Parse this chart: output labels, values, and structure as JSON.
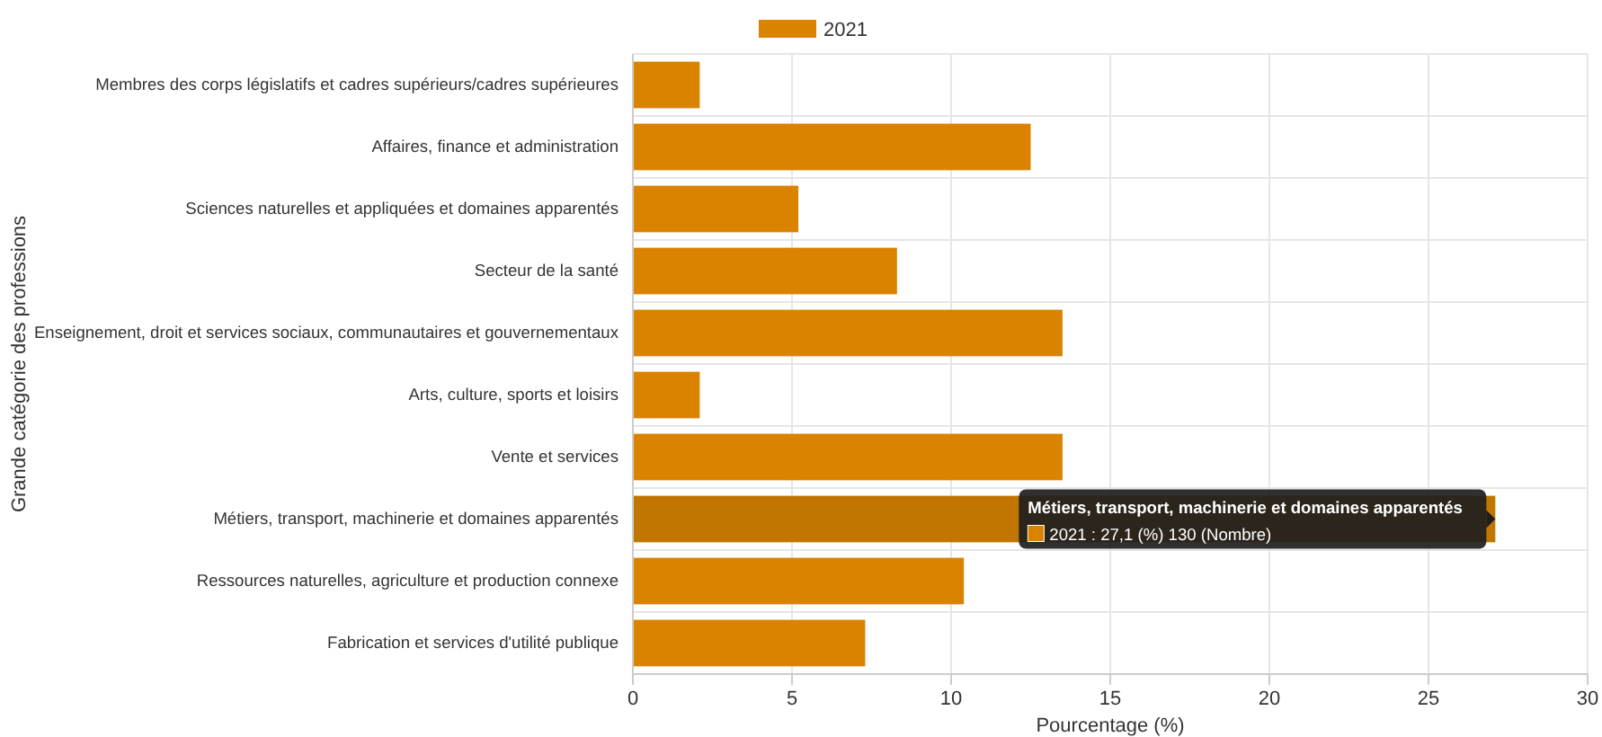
{
  "chart_data": {
    "type": "bar",
    "orientation": "horizontal",
    "xlabel": "Pourcentage (%)",
    "ylabel": "Grande catégorie des professions",
    "categories": [
      "Membres des corps législatifs et cadres supérieurs/cadres supérieures",
      "Affaires, finance et administration",
      "Sciences naturelles et appliquées et domaines apparentés",
      "Secteur de la santé",
      "Enseignement, droit et services sociaux, communautaires et gouvernementaux",
      "Arts, culture, sports et loisirs",
      "Vente et services",
      "Métiers, transport, machinerie et domaines apparentés",
      "Ressources naturelles, agriculture et production connexe",
      "Fabrication et services d'utilité publique"
    ],
    "series": [
      {
        "name": "2021",
        "color": "#d98300",
        "colors": [
          "#d98300",
          "#d98300",
          "#d98300",
          "#d98300",
          "#d98300",
          "#d98300",
          "#d98300",
          "#c07600",
          "#d98300",
          "#d98300"
        ],
        "values": [
          2.1,
          12.5,
          5.2,
          8.3,
          13.5,
          2.1,
          13.5,
          27.1,
          10.4,
          7.3
        ]
      }
    ],
    "xlim": [
      0,
      30
    ],
    "xticks": [
      0,
      5,
      10,
      15,
      20,
      25,
      30
    ],
    "grid": true,
    "legend": "top",
    "annotations": [
      "Métiers, transport, machinerie et domaines apparentés",
      "2021 : 27,1 (%)  130 (Nombre)"
    ]
  }
}
